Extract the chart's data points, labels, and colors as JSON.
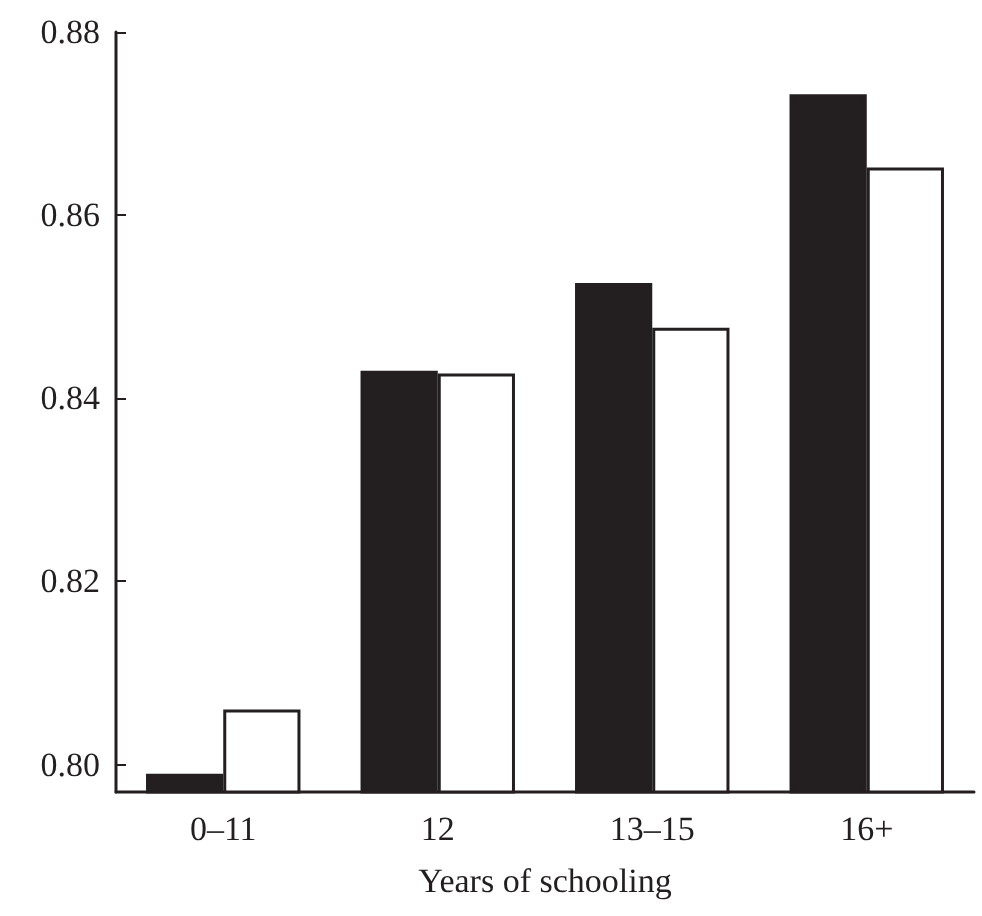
{
  "chart_data": {
    "type": "bar",
    "xlabel": "Years of schooling",
    "categories": [
      "0–11",
      "12",
      "13–15",
      "16+"
    ],
    "series": [
      {
        "color": "#231f20",
        "values": [
          0.799,
          0.843,
          0.8526,
          0.8732
        ]
      },
      {
        "color": "#ffffff",
        "values": [
          0.806,
          0.8427,
          0.8477,
          0.8652
        ]
      }
    ],
    "ylim": [
      0.797,
      0.88
    ],
    "yticks": [
      {
        "value": 0.8,
        "label": "0.80"
      },
      {
        "value": 0.82,
        "label": "0.82"
      },
      {
        "value": 0.84,
        "label": "0.84"
      },
      {
        "value": 0.86,
        "label": "0.86"
      },
      {
        "value": 0.88,
        "label": "0.88"
      }
    ]
  }
}
